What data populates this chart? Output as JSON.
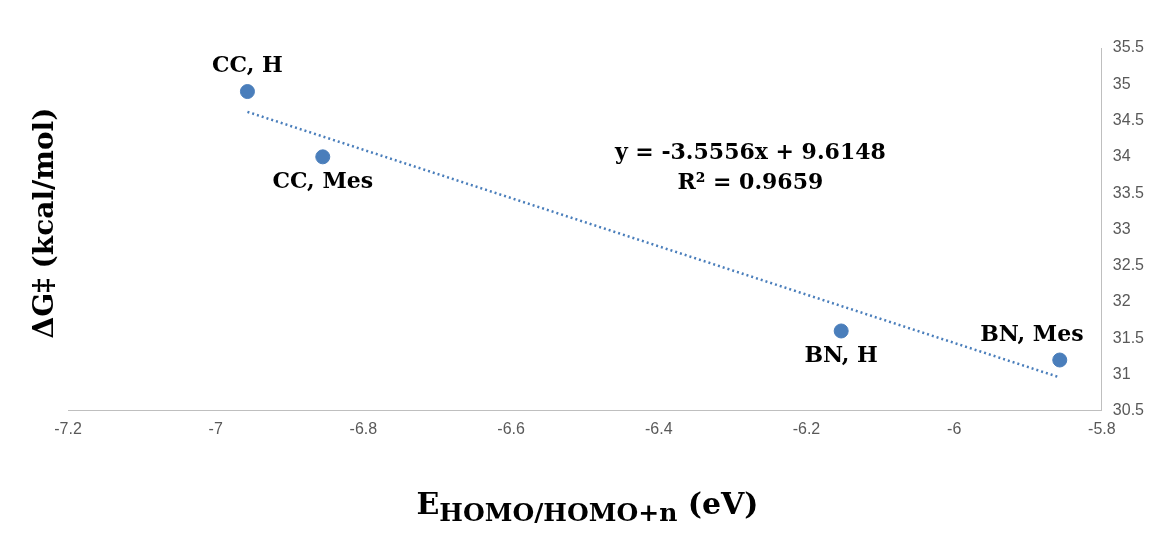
{
  "chart_data": {
    "type": "scatter",
    "xlabel": "E$_{HOMO/HOMO+n}$ (eV)",
    "ylabel": "ΔG‡ (kcal/mol)",
    "series": [
      {
        "type": "scatter",
        "color": "#4a7ebb",
        "x": [
          -6.957,
          -6.855,
          -6.153,
          -5.857
        ],
        "values": [
          34.9,
          34.0,
          31.6,
          31.2
        ],
        "marker": "circle"
      },
      {
        "type": "line",
        "color": "#4a7ebb",
        "x": [
          -6.957,
          -5.86
        ],
        "values": [
          34.62,
          30.97
        ],
        "line_style": "dotted",
        "marker": "none"
      }
    ],
    "xlim": [
      -7.2,
      -5.8
    ],
    "xticks": [
      -7.2,
      -7,
      -6.8,
      -6.6,
      -6.4,
      -6.2,
      -6,
      -5.8
    ],
    "ylim": [
      30.5,
      35.5
    ],
    "yticks": [
      30.5,
      31,
      31.5,
      32,
      32.5,
      33,
      33.5,
      34,
      34.5,
      35,
      35.5
    ],
    "grid": false,
    "legend": false,
    "annotations": [
      {
        "text": "CC, H",
        "x": -6.957,
        "y": 34.9
      },
      {
        "text": "CC, Mes",
        "x": -6.855,
        "y": 34.0
      },
      {
        "text": "BN, H",
        "x": -6.153,
        "y": 31.6
      },
      {
        "text": "BN, Mes",
        "x": -5.857,
        "y": 31.2
      },
      "y = -3.5556x + 9.6148",
      "R² = 0.9659"
    ]
  }
}
